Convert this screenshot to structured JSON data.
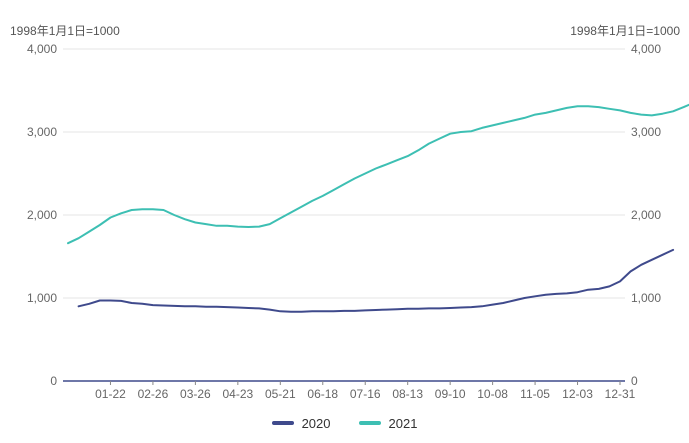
{
  "chart_data": {
    "type": "line",
    "x_axis_labels": [
      "01-22",
      "02-26",
      "03-26",
      "04-23",
      "05-21",
      "06-18",
      "07-16",
      "08-13",
      "09-10",
      "10-08",
      "11-05",
      "12-03",
      "12-31"
    ],
    "y_left": {
      "unit_label": "1998年1月1日=1000",
      "ticks": [
        "0",
        "1,000",
        "2,000",
        "3,000",
        "4,000"
      ],
      "range": [
        0,
        4000
      ]
    },
    "y_right": {
      "unit_label": "1998年1月1日=1000",
      "ticks": [
        "0",
        "1,000",
        "2,000",
        "3,000",
        "4,000"
      ],
      "range": [
        0,
        4000
      ]
    },
    "x_range_days": [
      0,
      364
    ],
    "grid": true,
    "legend_position": "bottom",
    "series": [
      {
        "name": "2020",
        "color": "#3f4a8c",
        "points": [
          [
            7,
            900
          ],
          [
            14,
            930
          ],
          [
            21,
            970
          ],
          [
            28,
            970
          ],
          [
            35,
            965
          ],
          [
            42,
            940
          ],
          [
            49,
            930
          ],
          [
            56,
            915
          ],
          [
            63,
            910
          ],
          [
            70,
            905
          ],
          [
            77,
            900
          ],
          [
            84,
            900
          ],
          [
            91,
            895
          ],
          [
            98,
            895
          ],
          [
            105,
            890
          ],
          [
            112,
            885
          ],
          [
            119,
            880
          ],
          [
            126,
            875
          ],
          [
            133,
            860
          ],
          [
            140,
            840
          ],
          [
            147,
            835
          ],
          [
            154,
            835
          ],
          [
            161,
            840
          ],
          [
            168,
            840
          ],
          [
            175,
            840
          ],
          [
            182,
            845
          ],
          [
            189,
            845
          ],
          [
            196,
            850
          ],
          [
            203,
            855
          ],
          [
            210,
            860
          ],
          [
            217,
            865
          ],
          [
            224,
            870
          ],
          [
            231,
            870
          ],
          [
            238,
            875
          ],
          [
            245,
            875
          ],
          [
            252,
            880
          ],
          [
            259,
            885
          ],
          [
            266,
            890
          ],
          [
            273,
            900
          ],
          [
            280,
            920
          ],
          [
            287,
            940
          ],
          [
            294,
            970
          ],
          [
            301,
            1000
          ],
          [
            308,
            1020
          ],
          [
            315,
            1040
          ],
          [
            322,
            1050
          ],
          [
            329,
            1055
          ],
          [
            336,
            1070
          ],
          [
            343,
            1100
          ],
          [
            350,
            1110
          ],
          [
            357,
            1140
          ],
          [
            364,
            1200
          ],
          [
            371,
            1320
          ],
          [
            378,
            1400
          ],
          [
            385,
            1460
          ],
          [
            392,
            1520
          ],
          [
            399,
            1580
          ]
        ]
      },
      {
        "name": "2021",
        "color": "#3dbfb3",
        "points": [
          [
            0,
            1660
          ],
          [
            7,
            1720
          ],
          [
            14,
            1800
          ],
          [
            21,
            1880
          ],
          [
            28,
            1970
          ],
          [
            35,
            2020
          ],
          [
            42,
            2060
          ],
          [
            49,
            2070
          ],
          [
            56,
            2070
          ],
          [
            63,
            2060
          ],
          [
            70,
            2000
          ],
          [
            77,
            1950
          ],
          [
            84,
            1910
          ],
          [
            91,
            1890
          ],
          [
            98,
            1870
          ],
          [
            105,
            1870
          ],
          [
            112,
            1860
          ],
          [
            119,
            1855
          ],
          [
            126,
            1860
          ],
          [
            133,
            1890
          ],
          [
            140,
            1960
          ],
          [
            147,
            2030
          ],
          [
            154,
            2100
          ],
          [
            161,
            2170
          ],
          [
            168,
            2230
          ],
          [
            175,
            2300
          ],
          [
            182,
            2370
          ],
          [
            189,
            2440
          ],
          [
            196,
            2500
          ],
          [
            203,
            2560
          ],
          [
            210,
            2610
          ],
          [
            217,
            2660
          ],
          [
            224,
            2710
          ],
          [
            231,
            2780
          ],
          [
            238,
            2860
          ],
          [
            245,
            2920
          ],
          [
            252,
            2980
          ],
          [
            259,
            3000
          ],
          [
            266,
            3010
          ],
          [
            273,
            3050
          ],
          [
            280,
            3080
          ],
          [
            287,
            3110
          ],
          [
            294,
            3140
          ],
          [
            301,
            3170
          ],
          [
            308,
            3210
          ],
          [
            315,
            3230
          ],
          [
            322,
            3260
          ],
          [
            329,
            3290
          ],
          [
            336,
            3310
          ],
          [
            343,
            3310
          ],
          [
            350,
            3300
          ],
          [
            357,
            3280
          ],
          [
            364,
            3260
          ],
          [
            371,
            3230
          ],
          [
            378,
            3210
          ],
          [
            385,
            3200
          ],
          [
            392,
            3220
          ],
          [
            399,
            3250
          ],
          [
            406,
            3300
          ],
          [
            411,
            3340
          ]
        ]
      }
    ]
  }
}
